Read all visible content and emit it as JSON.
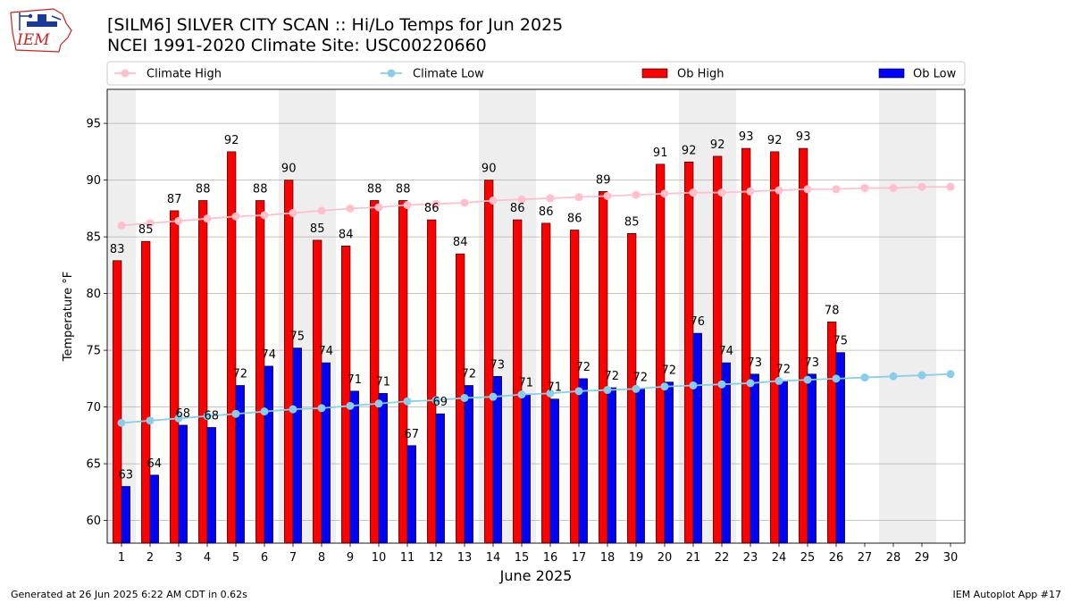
{
  "header": {
    "logo_text": "IEM",
    "title_line1": "[SILM6] SILVER CITY SCAN :: Hi/Lo Temps for Jun 2025",
    "title_line2": "NCEI 1991-2020 Climate Site: USC00220660"
  },
  "footer": {
    "generated": "Generated at 26 Jun 2025 6:22 AM CDT in 0.62s",
    "app": "IEM Autoplot App #17"
  },
  "chart_data": {
    "type": "bar",
    "xlabel": "June 2025",
    "ylabel": "Temperature °F",
    "ylim": [
      58,
      98
    ],
    "xlim": [
      0.5,
      30.5
    ],
    "yticks": [
      60,
      65,
      70,
      75,
      80,
      85,
      90,
      95
    ],
    "grid": "horizontal",
    "legend_position": "top",
    "categories": [
      1,
      2,
      3,
      4,
      5,
      6,
      7,
      8,
      9,
      10,
      11,
      12,
      13,
      14,
      15,
      16,
      17,
      18,
      19,
      20,
      21,
      22,
      23,
      24,
      25,
      26,
      27,
      28,
      29,
      30
    ],
    "weekend_shaded_days": [
      1,
      7,
      8,
      14,
      15,
      21,
      22,
      28,
      29
    ],
    "series": [
      {
        "name": "Climate High",
        "type": "line",
        "color": "#ffc0cb",
        "values": [
          86.0,
          86.2,
          86.4,
          86.6,
          86.8,
          86.9,
          87.1,
          87.3,
          87.5,
          87.6,
          87.8,
          87.9,
          88.0,
          88.2,
          88.3,
          88.4,
          88.5,
          88.6,
          88.7,
          88.8,
          88.9,
          88.9,
          89.0,
          89.1,
          89.2,
          89.2,
          89.3,
          89.3,
          89.4,
          89.4
        ]
      },
      {
        "name": "Climate Low",
        "type": "line",
        "color": "#87ceeb",
        "values": [
          68.6,
          68.8,
          69.0,
          69.2,
          69.4,
          69.6,
          69.8,
          69.9,
          70.1,
          70.3,
          70.5,
          70.6,
          70.8,
          70.9,
          71.1,
          71.2,
          71.4,
          71.5,
          71.6,
          71.8,
          71.9,
          72.0,
          72.1,
          72.3,
          72.4,
          72.5,
          72.6,
          72.7,
          72.8,
          72.9
        ]
      },
      {
        "name": "Ob High",
        "type": "bar",
        "color": "#ff0000",
        "values": [
          83,
          85,
          87,
          88,
          92,
          88,
          90,
          85,
          84,
          88,
          88,
          86,
          84,
          90,
          86,
          86,
          86,
          89,
          85,
          91,
          92,
          92,
          93,
          92,
          93,
          78,
          null,
          null,
          null,
          null
        ],
        "bar_heights": [
          82.9,
          84.6,
          87.3,
          88.2,
          92.5,
          88.2,
          90.0,
          84.7,
          84.2,
          88.2,
          88.2,
          86.5,
          83.5,
          90.0,
          86.5,
          86.2,
          85.6,
          89.0,
          85.3,
          91.4,
          91.6,
          92.1,
          92.8,
          92.5,
          92.8,
          77.5,
          null,
          null,
          null,
          null
        ]
      },
      {
        "name": "Ob Low",
        "type": "bar",
        "color": "#0000ff",
        "values": [
          63,
          64,
          68,
          68,
          72,
          74,
          75,
          74,
          71,
          71,
          67,
          69,
          72,
          73,
          71,
          71,
          72,
          72,
          72,
          72,
          76,
          74,
          73,
          72,
          73,
          75,
          null,
          null,
          null,
          null
        ],
        "bar_heights": [
          63.0,
          64.0,
          68.4,
          68.2,
          71.9,
          73.6,
          75.2,
          73.9,
          71.4,
          71.2,
          66.6,
          69.4,
          71.9,
          72.7,
          71.1,
          70.7,
          72.5,
          71.7,
          71.6,
          72.2,
          76.5,
          73.9,
          72.9,
          72.3,
          72.9,
          74.8,
          null,
          null,
          null,
          null
        ]
      }
    ]
  }
}
